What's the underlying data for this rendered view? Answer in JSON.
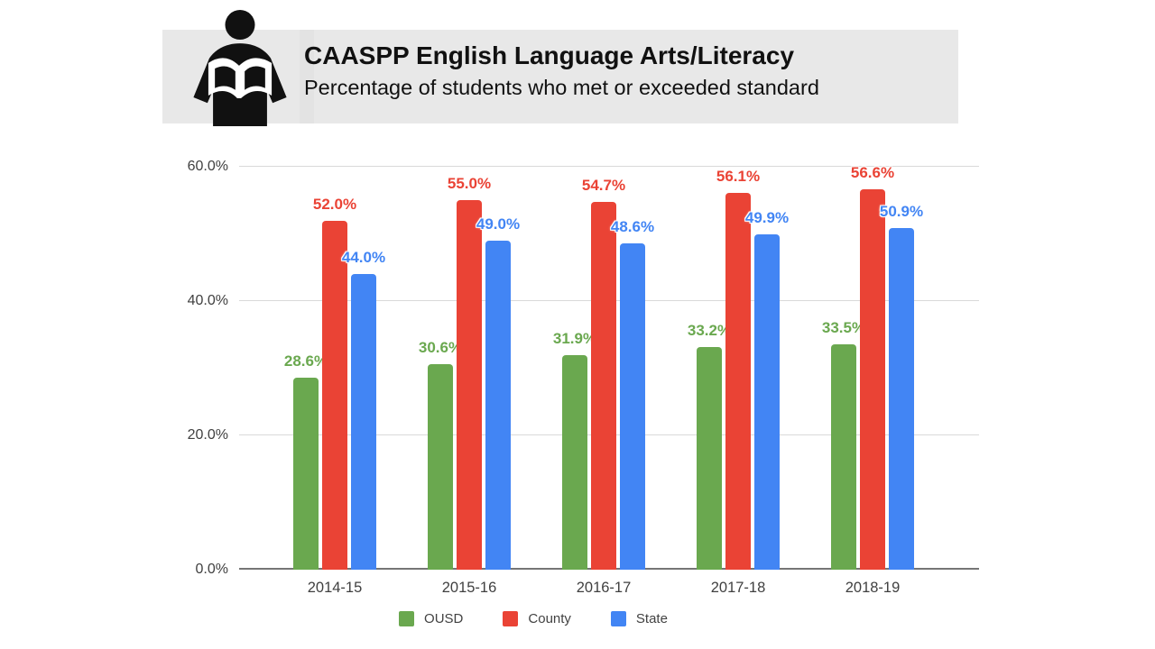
{
  "header": {
    "title": "CAASPP English Language Arts/Literacy",
    "subtitle": "Percentage of students who met or exceeded standard",
    "icon": "reading-person-icon"
  },
  "chart_data": {
    "type": "bar",
    "title": "CAASPP English Language Arts/Literacy",
    "subtitle": "Percentage of students who met or exceeded standard",
    "categories": [
      "2014-15",
      "2015-16",
      "2016-17",
      "2017-18",
      "2018-19"
    ],
    "series": [
      {
        "name": "OUSD",
        "color": "#6aa84f",
        "values": [
          28.6,
          30.6,
          31.9,
          33.2,
          33.5
        ]
      },
      {
        "name": "County",
        "color": "#ea4335",
        "values": [
          52.0,
          55.0,
          54.7,
          56.1,
          56.6
        ]
      },
      {
        "name": "State",
        "color": "#4285f4",
        "values": [
          44.0,
          49.0,
          48.6,
          49.9,
          50.9
        ]
      }
    ],
    "value_suffix": "%",
    "data_labels": true,
    "yticks": [
      "0.0%",
      "20.0%",
      "40.0%",
      "60.0%"
    ],
    "ytick_values": [
      0,
      20,
      40,
      60
    ],
    "ylim": [
      0,
      60
    ],
    "grid": true,
    "legend_position": "bottom",
    "colors": {
      "header_background": "#e8e8e8",
      "icon": "#111111",
      "gridline": "#d9d9d9",
      "axis_line": "#757575",
      "tick_text": "#404040",
      "legend_text": "#424242"
    }
  }
}
